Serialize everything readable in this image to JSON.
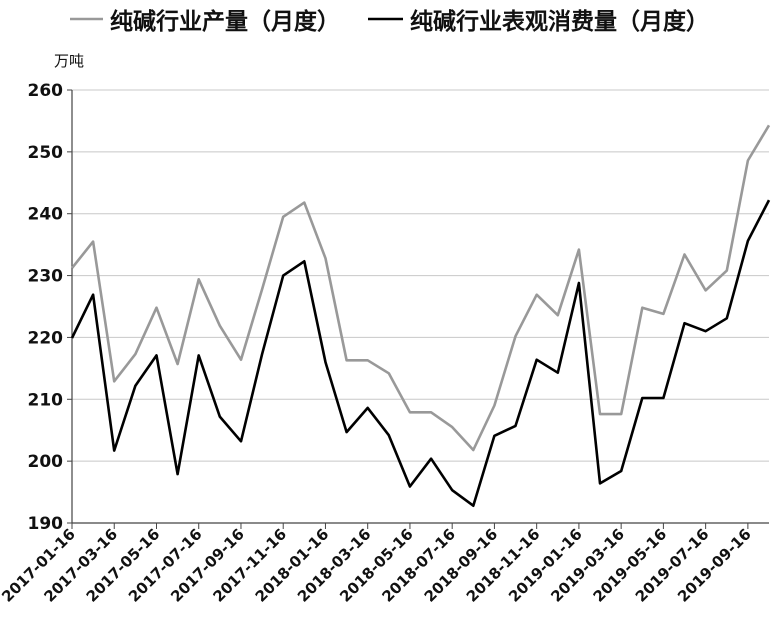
{
  "chart_data": {
    "type": "line",
    "unit": "万吨",
    "ylim": [
      190,
      260
    ],
    "yticks": [
      190,
      200,
      210,
      220,
      230,
      240,
      250,
      260
    ],
    "grid": true,
    "legend_position": "top",
    "x": [
      "2017-01-16",
      "2017-02-16",
      "2017-03-16",
      "2017-04-16",
      "2017-05-16",
      "2017-06-16",
      "2017-07-16",
      "2017-08-16",
      "2017-09-16",
      "2017-10-16",
      "2017-11-16",
      "2017-12-16",
      "2018-01-16",
      "2018-02-16",
      "2018-03-16",
      "2018-04-16",
      "2018-05-16",
      "2018-06-16",
      "2018-07-16",
      "2018-08-16",
      "2018-09-16",
      "2018-10-16",
      "2018-11-16",
      "2018-12-16",
      "2019-01-16",
      "2019-02-16",
      "2019-03-16",
      "2019-04-16",
      "2019-05-16",
      "2019-06-16",
      "2019-07-16",
      "2019-08-16",
      "2019-09-16",
      "2019-10-16"
    ],
    "xtick_labels": [
      "2017-01-16",
      "2017-03-16",
      "2017-05-16",
      "2017-07-16",
      "2017-09-16",
      "2017-11-16",
      "2018-01-16",
      "2018-03-16",
      "2018-05-16",
      "2018-07-16",
      "2018-09-16",
      "2018-11-16",
      "2019-01-16",
      "2019-03-16",
      "2019-05-16",
      "2019-07-16",
      "2019-09-16"
    ],
    "series": [
      {
        "name": "纯碱行业产量（月度）",
        "color": "#999999",
        "values": [
          231.2,
          235.5,
          212.9,
          217.3,
          224.8,
          215.7,
          229.4,
          221.9,
          216.4,
          227.8,
          239.5,
          241.8,
          232.8,
          216.3,
          216.3,
          214.2,
          207.9,
          207.9,
          205.5,
          201.8,
          209.0,
          220.2,
          226.9,
          223.6,
          234.2,
          207.6,
          207.6,
          224.8,
          223.8,
          233.4,
          227.6,
          230.8,
          248.6,
          254.3
        ]
      },
      {
        "name": "纯碱行业表观消费量（月度）",
        "color": "#000000",
        "values": [
          219.9,
          226.9,
          201.7,
          212.2,
          217.1,
          197.9,
          217.1,
          207.2,
          203.2,
          217.3,
          230.0,
          232.3,
          216.0,
          204.7,
          208.6,
          204.2,
          195.9,
          200.4,
          195.3,
          192.8,
          204.1,
          205.7,
          216.4,
          214.3,
          228.8,
          196.4,
          198.4,
          210.2,
          210.2,
          222.3,
          221.0,
          223.1,
          235.6,
          242.2
        ]
      }
    ]
  }
}
